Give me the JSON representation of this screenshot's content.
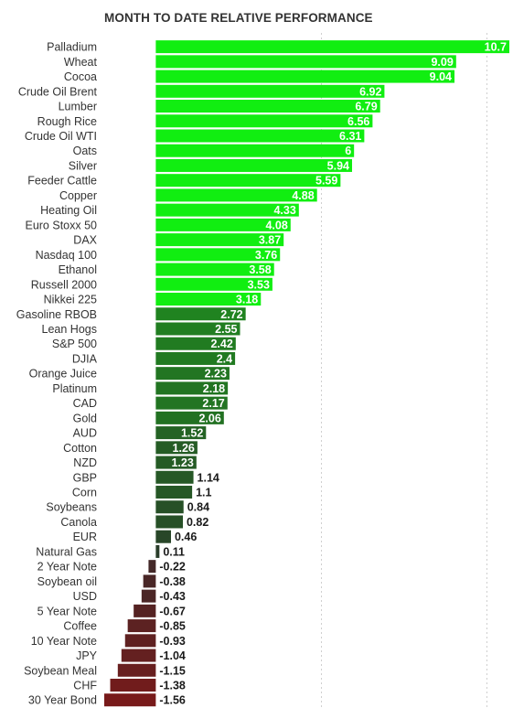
{
  "chart_data": {
    "type": "bar",
    "orientation": "horizontal",
    "title": "MONTH TO DATE RELATIVE PERFORMANCE",
    "xlim": [
      -1.56,
      10.7
    ],
    "gridlines": [
      5,
      10
    ],
    "categories": [
      "Palladium",
      "Wheat",
      "Cocoa",
      "Crude Oil Brent",
      "Lumber",
      "Rough Rice",
      "Crude Oil WTI",
      "Oats",
      "Silver",
      "Feeder Cattle",
      "Copper",
      "Heating Oil",
      "Euro Stoxx 50",
      "DAX",
      "Nasdaq 100",
      "Ethanol",
      "Russell 2000",
      "Nikkei 225",
      "Gasoline RBOB",
      "Lean Hogs",
      "S&P 500",
      "DJIA",
      "Orange Juice",
      "Platinum",
      "CAD",
      "Gold",
      "AUD",
      "Cotton",
      "NZD",
      "GBP",
      "Corn",
      "Soybeans",
      "Canola",
      "EUR",
      "Natural Gas",
      "2 Year Note",
      "Soybean oil",
      "USD",
      "5 Year Note",
      "Coffee",
      "10 Year Note",
      "JPY",
      "Soybean Meal",
      "CHF",
      "30 Year Bond"
    ],
    "values": [
      10.7,
      9.09,
      9.04,
      6.92,
      6.79,
      6.56,
      6.31,
      6,
      5.94,
      5.59,
      4.88,
      4.33,
      4.08,
      3.87,
      3.76,
      3.58,
      3.53,
      3.18,
      2.72,
      2.55,
      2.42,
      2.4,
      2.23,
      2.18,
      2.17,
      2.06,
      1.52,
      1.26,
      1.23,
      1.14,
      1.1,
      0.84,
      0.82,
      0.46,
      0.11,
      -0.22,
      -0.38,
      -0.43,
      -0.67,
      -0.85,
      -0.93,
      -1.04,
      -1.15,
      -1.38,
      -1.56
    ],
    "value_labels": [
      "10.7",
      "9.09",
      "9.04",
      "6.92",
      "6.79",
      "6.56",
      "6.31",
      "6",
      "5.94",
      "5.59",
      "4.88",
      "4.33",
      "4.08",
      "3.87",
      "3.76",
      "3.58",
      "3.53",
      "3.18",
      "2.72",
      "2.55",
      "2.42",
      "2.4",
      "2.23",
      "2.18",
      "2.17",
      "2.06",
      "1.52",
      "1.26",
      "1.23",
      "1.14",
      "1.1",
      "0.84",
      "0.82",
      "0.46",
      "0.11",
      "-0.22",
      "-0.38",
      "-0.43",
      "-0.67",
      "-0.85",
      "-0.93",
      "-1.04",
      "-1.15",
      "-1.38",
      "-1.56"
    ],
    "colors": {
      "strong_positive": "#11ee11",
      "weak_positive": "#2a3a2a",
      "weak_negative": "#3a2a2a",
      "strong_negative": "#7a1a1a"
    },
    "grid": true,
    "legend": "none"
  }
}
